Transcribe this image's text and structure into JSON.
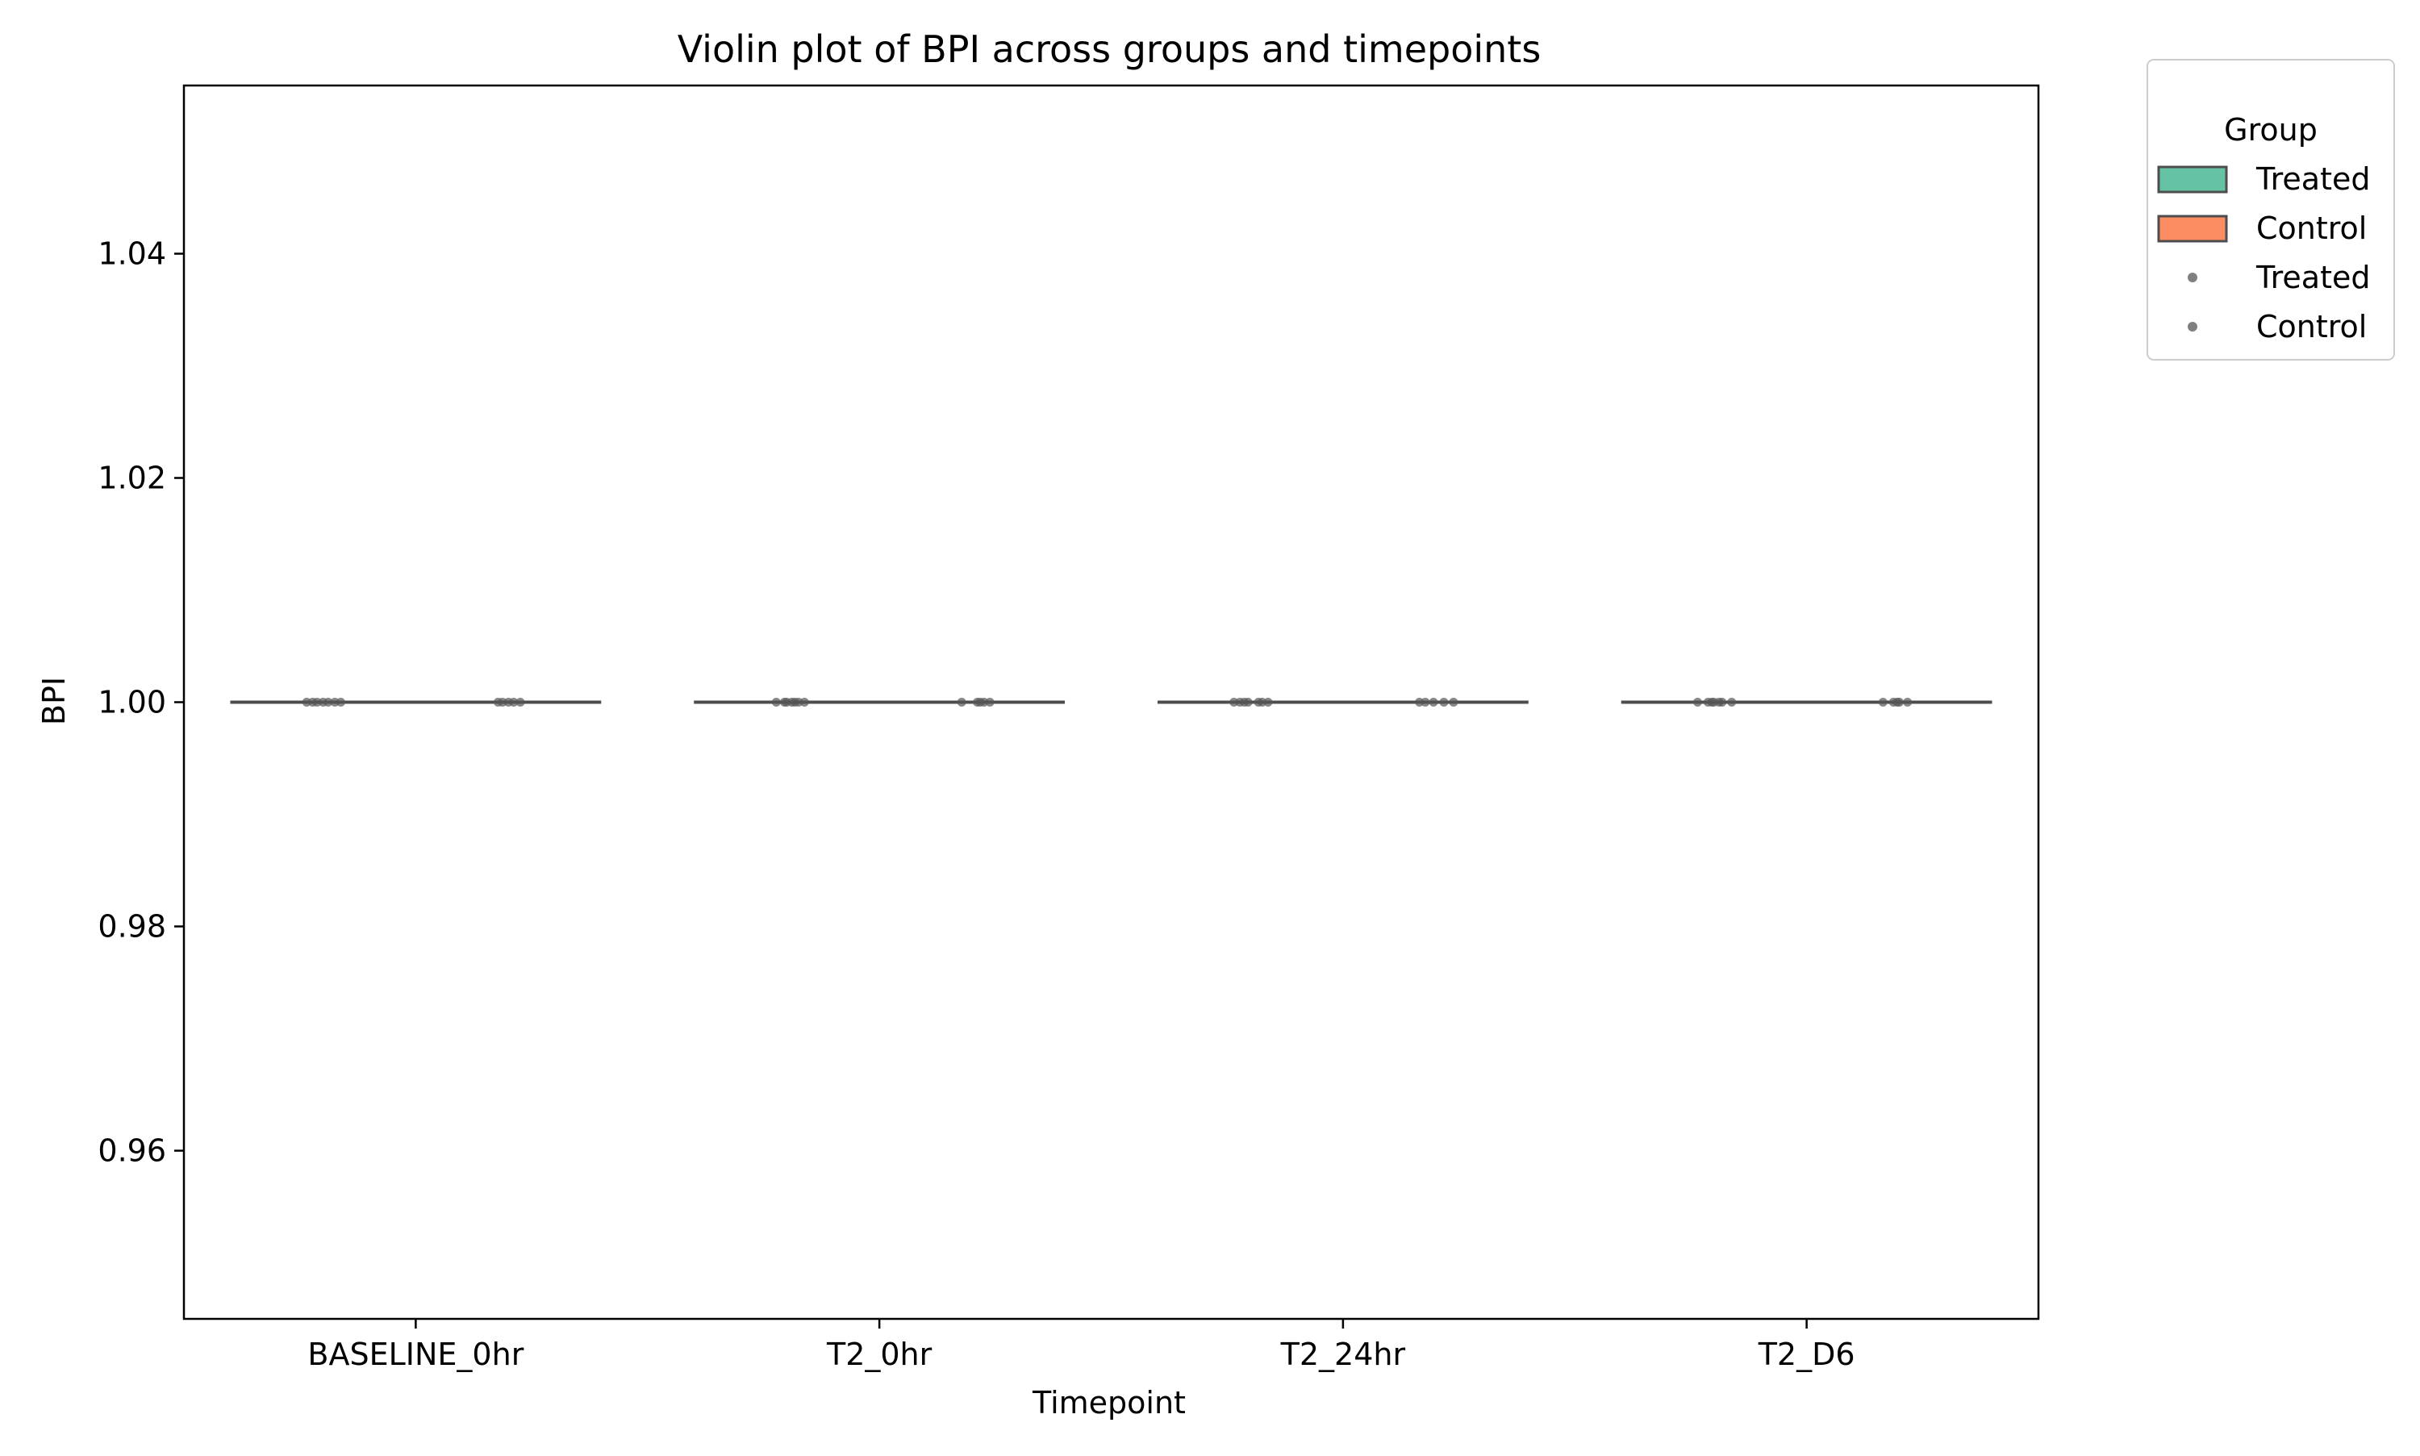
{
  "chart_data": {
    "type": "violin",
    "title": "Violin plot of BPI across groups and timepoints",
    "xlabel": "Timepoint",
    "ylabel": "BPI",
    "categories": [
      "BASELINE_0hr",
      "T2_0hr",
      "T2_24hr",
      "T2_D6"
    ],
    "ylim": [
      0.945,
      1.055
    ],
    "yticks": [
      0.96,
      0.98,
      1.0,
      1.02,
      1.04
    ],
    "ytick_labels": [
      "0.96",
      "0.98",
      "1.00",
      "1.02",
      "1.04"
    ],
    "grid": false,
    "series": [
      {
        "name": "Treated",
        "color": "#66c2a5",
        "values": [
          [
            1.0,
            1.0,
            1.0,
            1.0,
            1.0,
            1.0,
            1.0
          ],
          [
            1.0,
            1.0,
            1.0,
            1.0,
            1.0,
            1.0,
            1.0
          ],
          [
            1.0,
            1.0,
            1.0,
            1.0,
            1.0,
            1.0,
            1.0
          ],
          [
            1.0,
            1.0,
            1.0,
            1.0,
            1.0,
            1.0,
            1.0
          ]
        ]
      },
      {
        "name": "Control",
        "color": "#fc8d62",
        "values": [
          [
            1.0,
            1.0,
            1.0,
            1.0,
            1.0
          ],
          [
            1.0,
            1.0,
            1.0,
            1.0,
            1.0
          ],
          [
            1.0,
            1.0,
            1.0,
            1.0,
            1.0
          ],
          [
            1.0,
            1.0,
            1.0,
            1.0,
            1.0
          ]
        ]
      }
    ],
    "point_color": "#555555",
    "line_color": "#4d4d4d",
    "legend": {
      "title": "Group",
      "placement": "outside-top-right",
      "entries": [
        {
          "label": "Treated",
          "kind": "patch",
          "color": "#66c2a5"
        },
        {
          "label": "Control",
          "kind": "patch",
          "color": "#fc8d62"
        },
        {
          "label": "Treated",
          "kind": "point",
          "color": "#808080"
        },
        {
          "label": "Control",
          "kind": "point",
          "color": "#808080"
        }
      ]
    }
  }
}
